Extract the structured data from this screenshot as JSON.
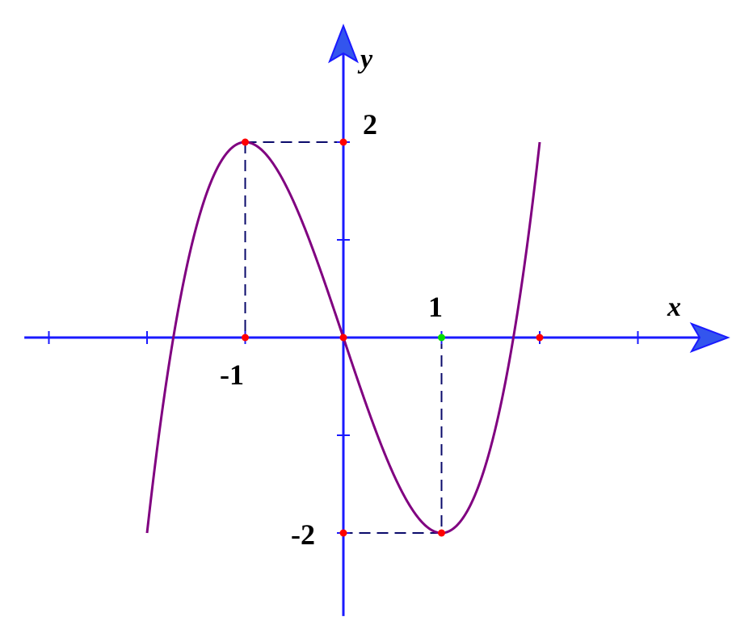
{
  "chart_data": {
    "type": "line",
    "function": "y = x^3 - 3x",
    "x_range": [
      -2,
      2
    ],
    "xlim": [
      -3.25,
      3.9
    ],
    "ylim": [
      -2.85,
      3.1
    ],
    "x_ticks": [
      -3,
      -2,
      -1,
      0,
      1,
      2,
      3
    ],
    "y_ticks": [
      -2,
      -1,
      1,
      2
    ],
    "xlabel": "x",
    "ylabel": "y",
    "tick_labels": {
      "x_neg1": "-1",
      "x_1": "1",
      "y_2": "2",
      "y_neg2": "-2"
    },
    "points": [
      {
        "x": -1,
        "y": 2,
        "color": "#ff0000"
      },
      {
        "x": 0,
        "y": 2,
        "color": "#ff0000"
      },
      {
        "x": -1,
        "y": 0,
        "color": "#ff0000"
      },
      {
        "x": 0,
        "y": 0,
        "color": "#ff0000"
      },
      {
        "x": 1,
        "y": 0,
        "color": "#00dd00"
      },
      {
        "x": 2,
        "y": 0,
        "color": "#ff0000"
      },
      {
        "x": 1,
        "y": -2,
        "color": "#ff0000"
      },
      {
        "x": 0,
        "y": -2,
        "color": "#ff0000"
      }
    ],
    "dashed_guides": [
      {
        "from": [
          -1,
          2
        ],
        "to": [
          0,
          2
        ]
      },
      {
        "from": [
          -1,
          2
        ],
        "to": [
          -1,
          0
        ]
      },
      {
        "from": [
          1,
          0
        ],
        "to": [
          1,
          -2
        ]
      },
      {
        "from": [
          1,
          -2
        ],
        "to": [
          0,
          -2
        ]
      }
    ],
    "grid": false,
    "colors": {
      "axis": "#1a1aff",
      "arrow_fill": "#3355ee",
      "curve": "#800080",
      "guide": "#0a0a6b"
    }
  }
}
